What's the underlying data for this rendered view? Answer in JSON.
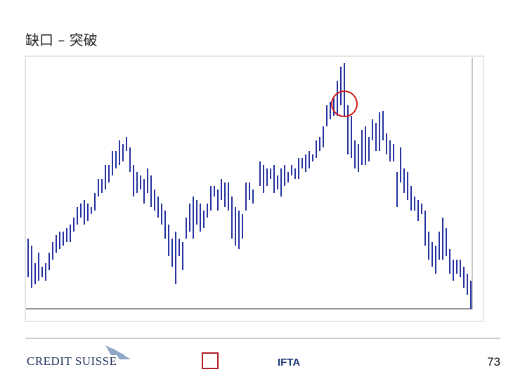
{
  "header": {
    "title": "缺口 – 突破"
  },
  "footer": {
    "brand": "CREDIT SUISSE",
    "partner": "IFTA",
    "page_number": "73"
  }
}
